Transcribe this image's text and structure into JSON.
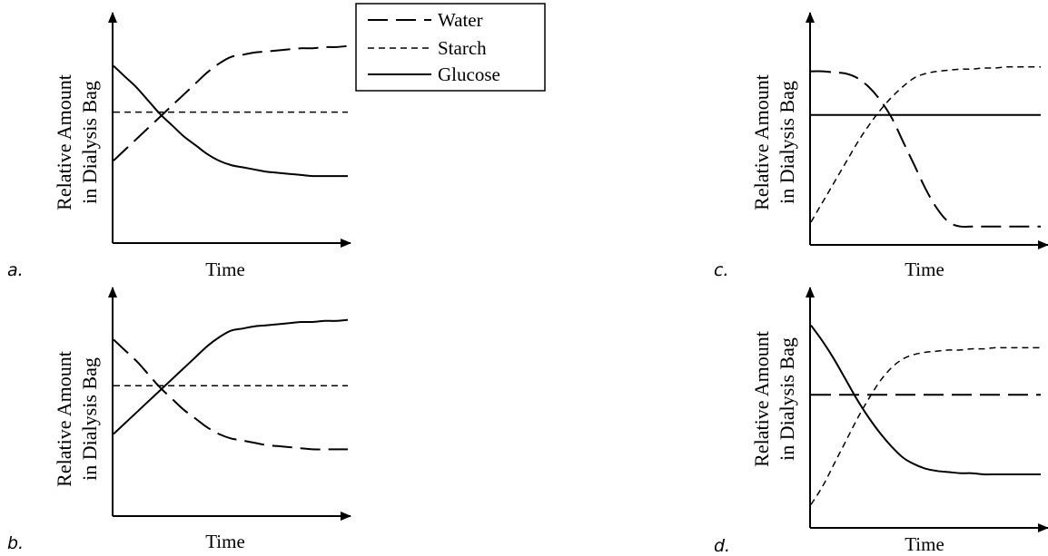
{
  "legend": {
    "items": [
      {
        "label": "Water",
        "style": "long-dash"
      },
      {
        "label": "Starch",
        "style": "short-dash"
      },
      {
        "label": "Glucose",
        "style": "solid"
      }
    ]
  },
  "line_styles": {
    "long-dash": "22 9",
    "short-dash": "7 5",
    "solid": ""
  },
  "chart_data": [
    {
      "type": "line",
      "panel_label": "a.",
      "ylabel": [
        "Relative Amount",
        "in Dialysis Bag"
      ],
      "xlabel": "Time",
      "x": [
        0,
        0.05,
        0.1,
        0.15,
        0.2,
        0.25,
        0.3,
        0.35,
        0.4,
        0.45,
        0.5,
        0.55,
        0.6,
        0.65,
        0.7,
        0.75,
        0.8,
        0.85,
        0.9,
        0.95,
        1.0
      ],
      "xlim": [
        0,
        1
      ],
      "ylim": [
        0,
        1
      ],
      "series": [
        {
          "name": "Water",
          "style": "long-dash",
          "values": [
            0.37,
            0.42,
            0.47,
            0.52,
            0.57,
            0.62,
            0.67,
            0.72,
            0.77,
            0.81,
            0.84,
            0.85,
            0.86,
            0.865,
            0.87,
            0.875,
            0.88,
            0.88,
            0.885,
            0.885,
            0.89
          ]
        },
        {
          "name": "Starch",
          "style": "short-dash",
          "values": [
            0.59,
            0.59,
            0.59,
            0.59,
            0.59,
            0.59,
            0.59,
            0.59,
            0.59,
            0.59,
            0.59,
            0.59,
            0.59,
            0.59,
            0.59,
            0.59,
            0.59,
            0.59,
            0.59,
            0.59,
            0.59
          ]
        },
        {
          "name": "Glucose",
          "style": "solid",
          "values": [
            0.8,
            0.75,
            0.7,
            0.64,
            0.58,
            0.53,
            0.48,
            0.44,
            0.4,
            0.37,
            0.35,
            0.34,
            0.33,
            0.32,
            0.315,
            0.31,
            0.305,
            0.3,
            0.3,
            0.3,
            0.3
          ]
        }
      ]
    },
    {
      "type": "line",
      "panel_label": "b.",
      "ylabel": [
        "Relative Amount",
        "in Dialysis Bag"
      ],
      "xlabel": "Time",
      "x": [
        0,
        0.05,
        0.1,
        0.15,
        0.2,
        0.25,
        0.3,
        0.35,
        0.4,
        0.45,
        0.5,
        0.55,
        0.6,
        0.65,
        0.7,
        0.75,
        0.8,
        0.85,
        0.9,
        0.95,
        1.0
      ],
      "xlim": [
        0,
        1
      ],
      "ylim": [
        0,
        1
      ],
      "series": [
        {
          "name": "Water",
          "style": "long-dash",
          "values": [
            0.8,
            0.75,
            0.7,
            0.64,
            0.58,
            0.53,
            0.48,
            0.44,
            0.4,
            0.37,
            0.35,
            0.34,
            0.33,
            0.32,
            0.315,
            0.31,
            0.305,
            0.3,
            0.3,
            0.3,
            0.3
          ]
        },
        {
          "name": "Starch",
          "style": "short-dash",
          "values": [
            0.59,
            0.59,
            0.59,
            0.59,
            0.59,
            0.59,
            0.59,
            0.59,
            0.59,
            0.59,
            0.59,
            0.59,
            0.59,
            0.59,
            0.59,
            0.59,
            0.59,
            0.59,
            0.59,
            0.59,
            0.59
          ]
        },
        {
          "name": "Glucose",
          "style": "solid",
          "values": [
            0.37,
            0.42,
            0.47,
            0.52,
            0.57,
            0.62,
            0.67,
            0.72,
            0.77,
            0.81,
            0.84,
            0.85,
            0.86,
            0.865,
            0.87,
            0.875,
            0.88,
            0.88,
            0.885,
            0.885,
            0.89
          ]
        }
      ]
    },
    {
      "type": "line",
      "panel_label": "c.",
      "ylabel": [
        "Relative Amount",
        "in Dialysis Bag"
      ],
      "xlabel": "Time",
      "x": [
        0,
        0.05,
        0.1,
        0.15,
        0.2,
        0.25,
        0.3,
        0.35,
        0.4,
        0.45,
        0.5,
        0.55,
        0.6,
        0.65,
        0.7,
        0.75,
        0.8,
        0.85,
        0.9,
        0.95,
        1.0
      ],
      "xlim": [
        0,
        1
      ],
      "ylim": [
        0,
        1
      ],
      "series": [
        {
          "name": "Water",
          "style": "long-dash",
          "values": [
            0.79,
            0.79,
            0.785,
            0.78,
            0.76,
            0.72,
            0.66,
            0.58,
            0.47,
            0.36,
            0.25,
            0.16,
            0.1,
            0.08,
            0.08,
            0.08,
            0.08,
            0.08,
            0.08,
            0.08,
            0.08
          ]
        },
        {
          "name": "Starch",
          "style": "short-dash",
          "values": [
            0.1,
            0.19,
            0.28,
            0.37,
            0.46,
            0.54,
            0.61,
            0.67,
            0.72,
            0.76,
            0.78,
            0.79,
            0.795,
            0.8,
            0.8,
            0.805,
            0.805,
            0.81,
            0.81,
            0.81,
            0.81
          ]
        },
        {
          "name": "Glucose",
          "style": "solid",
          "values": [
            0.59,
            0.59,
            0.59,
            0.59,
            0.59,
            0.59,
            0.59,
            0.59,
            0.59,
            0.59,
            0.59,
            0.59,
            0.59,
            0.59,
            0.59,
            0.59,
            0.59,
            0.59,
            0.59,
            0.59,
            0.59
          ]
        }
      ]
    },
    {
      "type": "line",
      "panel_label": "d.",
      "ylabel": [
        "Relative Amount",
        "in Dialysis Bag"
      ],
      "xlabel": "Time",
      "x": [
        0,
        0.05,
        0.1,
        0.15,
        0.2,
        0.25,
        0.3,
        0.35,
        0.4,
        0.45,
        0.5,
        0.55,
        0.6,
        0.65,
        0.7,
        0.75,
        0.8,
        0.85,
        0.9,
        0.95,
        1.0
      ],
      "xlim": [
        0,
        1
      ],
      "ylim": [
        0,
        1
      ],
      "series": [
        {
          "name": "Water",
          "style": "long-dash",
          "values": [
            0.59,
            0.59,
            0.59,
            0.59,
            0.59,
            0.59,
            0.59,
            0.59,
            0.59,
            0.59,
            0.59,
            0.59,
            0.59,
            0.59,
            0.59,
            0.59,
            0.59,
            0.59,
            0.59,
            0.59,
            0.59
          ]
        },
        {
          "name": "Starch",
          "style": "short-dash",
          "values": [
            0.1,
            0.18,
            0.28,
            0.38,
            0.48,
            0.57,
            0.65,
            0.71,
            0.75,
            0.77,
            0.78,
            0.785,
            0.79,
            0.79,
            0.795,
            0.795,
            0.8,
            0.8,
            0.8,
            0.8,
            0.8
          ]
        },
        {
          "name": "Glucose",
          "style": "solid",
          "values": [
            0.9,
            0.83,
            0.75,
            0.66,
            0.57,
            0.49,
            0.42,
            0.36,
            0.31,
            0.28,
            0.26,
            0.25,
            0.245,
            0.24,
            0.24,
            0.235,
            0.235,
            0.235,
            0.235,
            0.235,
            0.235
          ]
        }
      ]
    }
  ]
}
